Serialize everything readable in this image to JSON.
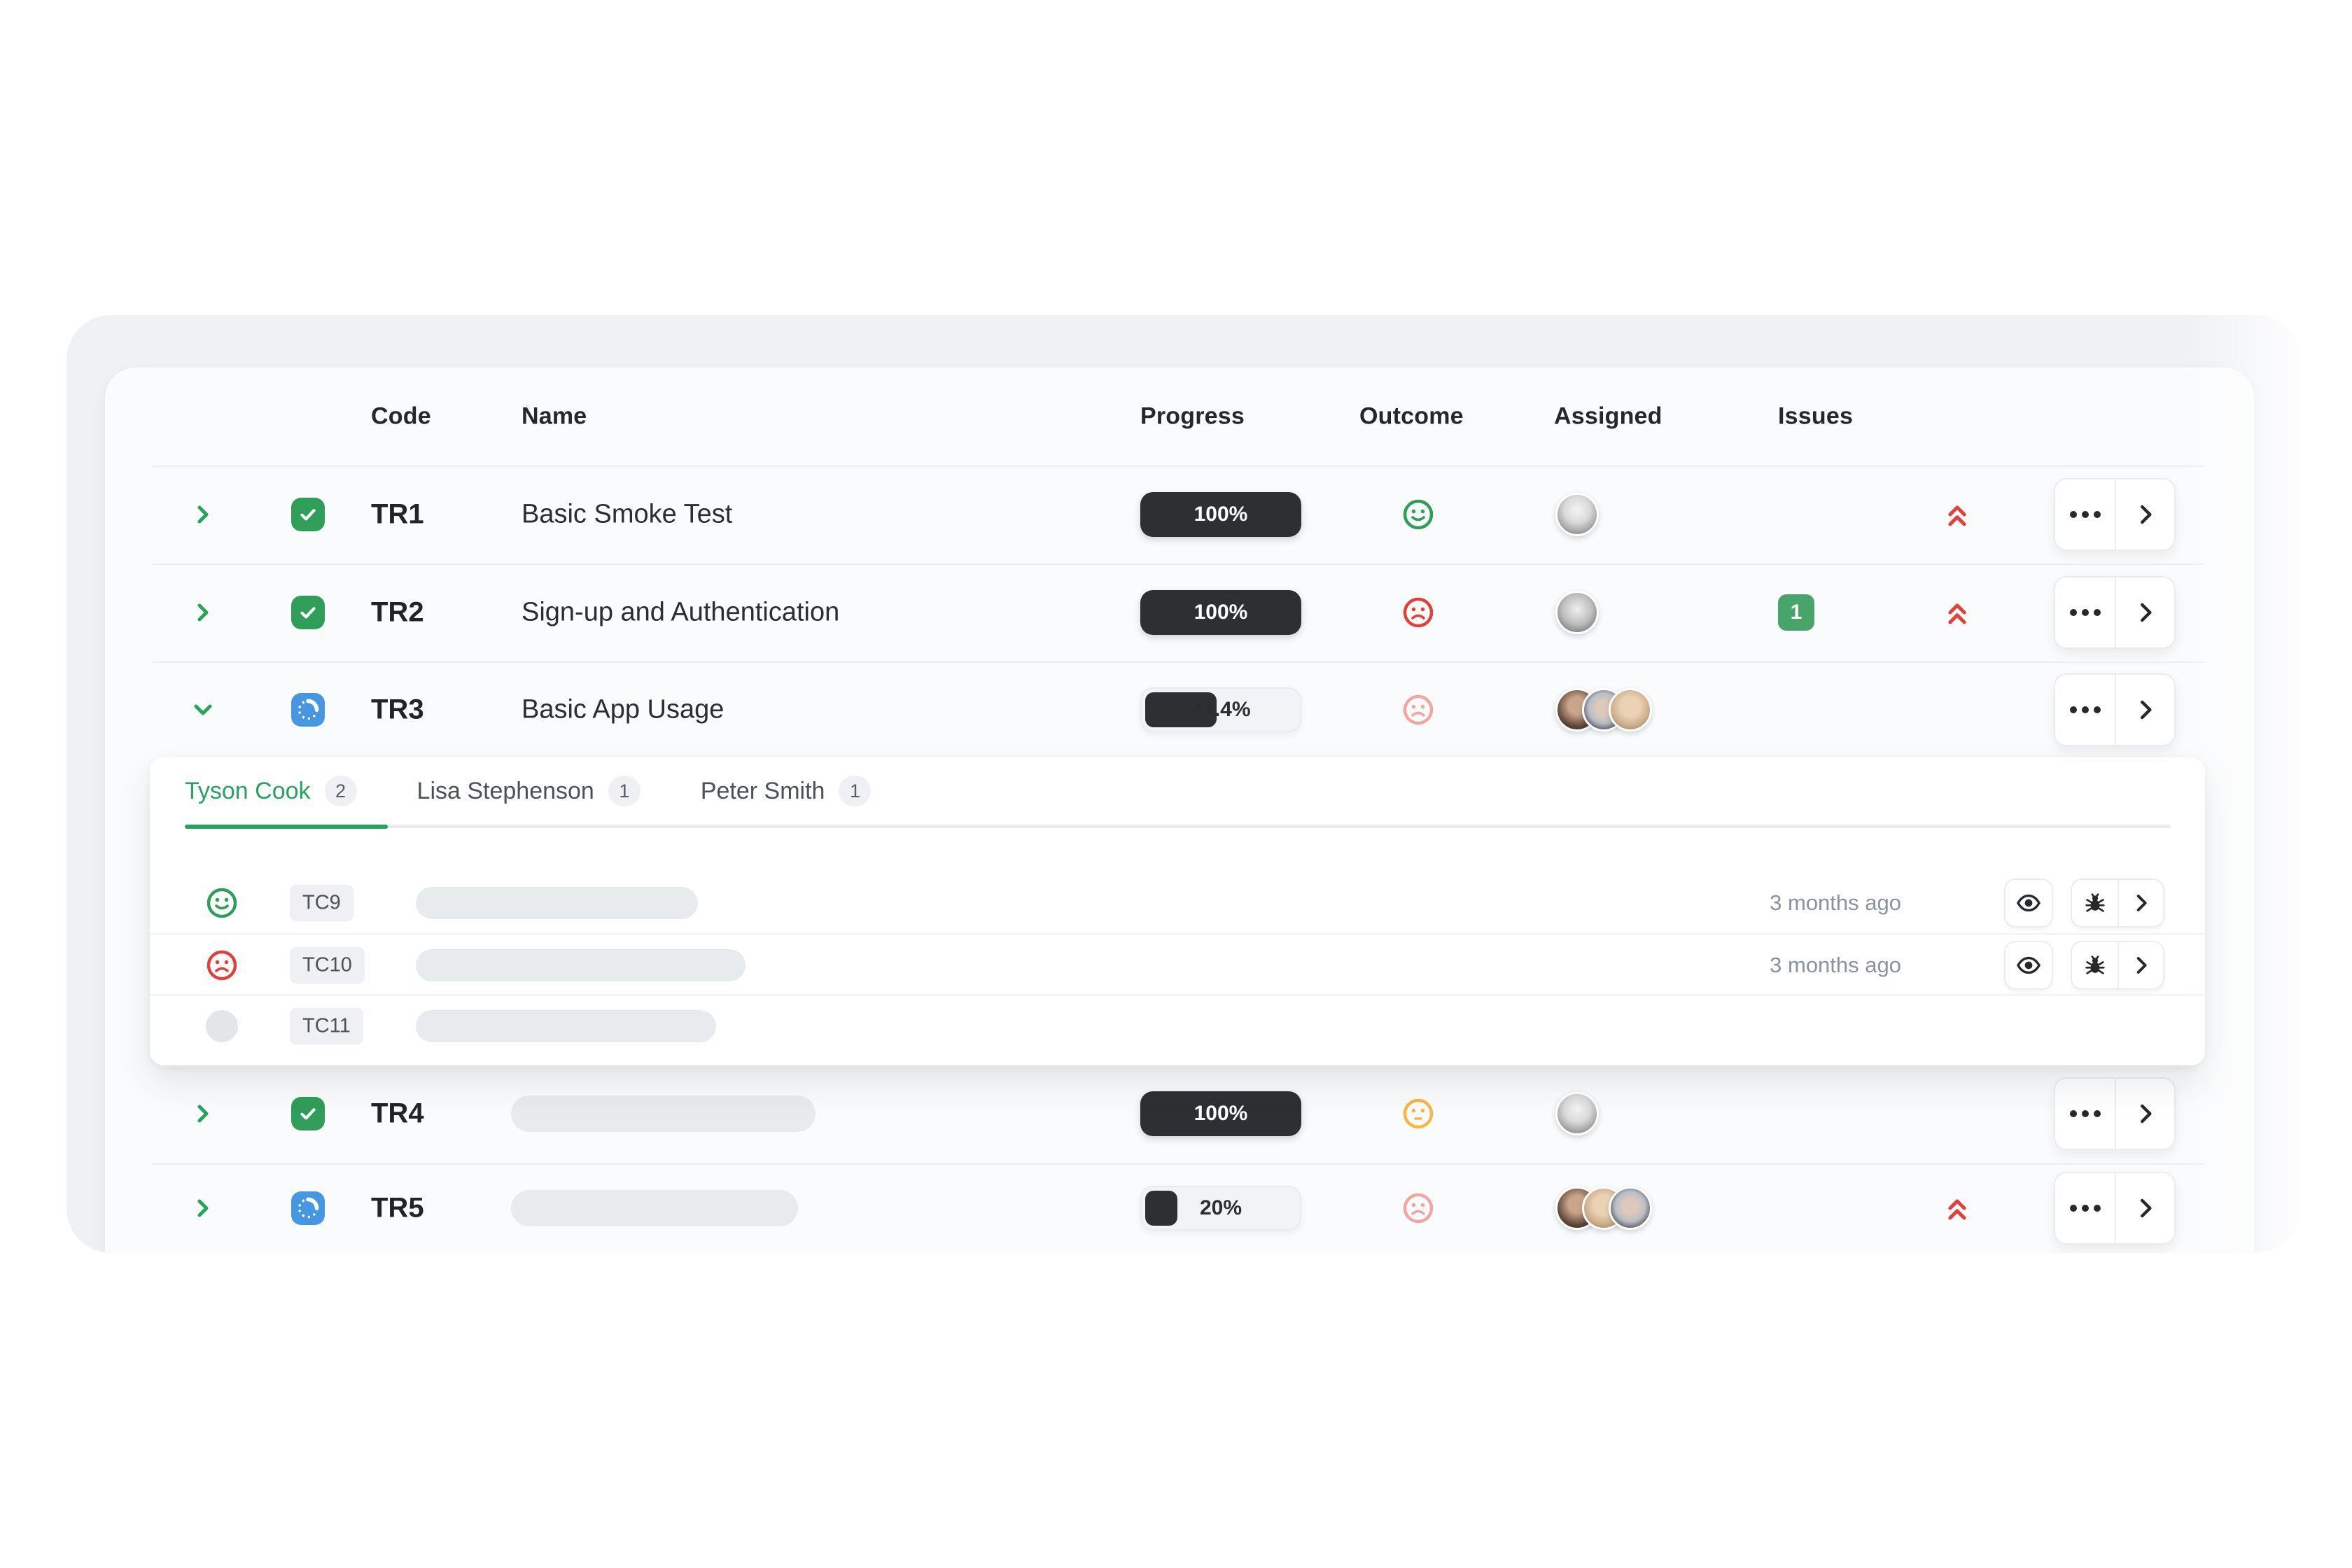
{
  "colors": {
    "green": "#2f9e58",
    "green-accent": "#27a45c",
    "red": "#e2403a",
    "pale-red": "#f0a7a3",
    "yellow": "#f4b844",
    "blue": "#4697e2",
    "dark": "#2d2f33",
    "issue-green": "#48a569"
  },
  "table": {
    "columns": {
      "code": "Code",
      "name": "Name",
      "progress": "Progress",
      "outcome": "Outcome",
      "assigned": "Assigned",
      "issues": "Issues"
    },
    "rows": [
      {
        "code": "TR1",
        "name": "Basic Smoke Test",
        "progress": "100%",
        "pct": 100,
        "outcome": "passed",
        "issues": ""
      },
      {
        "code": "TR2",
        "name": "Sign-up and Authentication",
        "progress": "100%",
        "pct": 100,
        "outcome": "failed",
        "issues": "1"
      },
      {
        "code": "TR3",
        "name": "Basic App Usage",
        "progress": "44.4%",
        "pct": 44.4,
        "outcome": "failed-muted",
        "issues": ""
      },
      {
        "code": "TR4",
        "name": "",
        "progress": "100%",
        "pct": 100,
        "outcome": "neutral",
        "issues": ""
      },
      {
        "code": "TR5",
        "name": "",
        "progress": "20%",
        "pct": 20,
        "outcome": "failed-muted",
        "issues": ""
      }
    ]
  },
  "expanded": {
    "tabs": [
      {
        "label": "Tyson Cook",
        "count": "2"
      },
      {
        "label": "Lisa Stephenson",
        "count": "1"
      },
      {
        "label": "Peter Smith",
        "count": "1"
      }
    ],
    "cases": [
      {
        "code": "TC9",
        "outcome": "passed",
        "updated": "3 months ago"
      },
      {
        "code": "TC10",
        "outcome": "failed",
        "updated": "3 months ago"
      },
      {
        "code": "TC11",
        "outcome": "untested",
        "updated": ""
      }
    ]
  }
}
